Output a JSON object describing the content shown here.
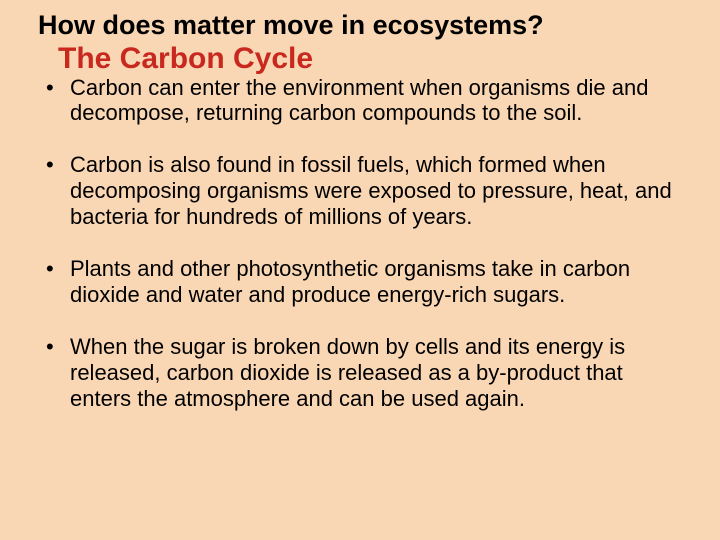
{
  "colors": {
    "background": "#fad7b4",
    "text": "#000000",
    "subtitle": "#c8281e"
  },
  "typography": {
    "title_fontsize": 27,
    "subtitle_fontsize": 30,
    "body_fontsize": 22,
    "font_family": "Arial"
  },
  "title": "How does matter move in ecosystems?",
  "subtitle": "The Carbon Cycle",
  "bullets": [
    "Carbon can enter the environment when organisms die and decompose, returning carbon compounds to the soil.",
    "Carbon is also found in fossil fuels, which formed when decomposing organisms were exposed to pressure, heat, and bacteria for hundreds of millions of years.",
    "Plants and other photosynthetic organisms take in carbon dioxide and water and produce energy-rich sugars.",
    "When the sugar is broken down by cells and its energy is released, carbon dioxide is released as a by-product that enters the atmosphere and can be used again."
  ]
}
